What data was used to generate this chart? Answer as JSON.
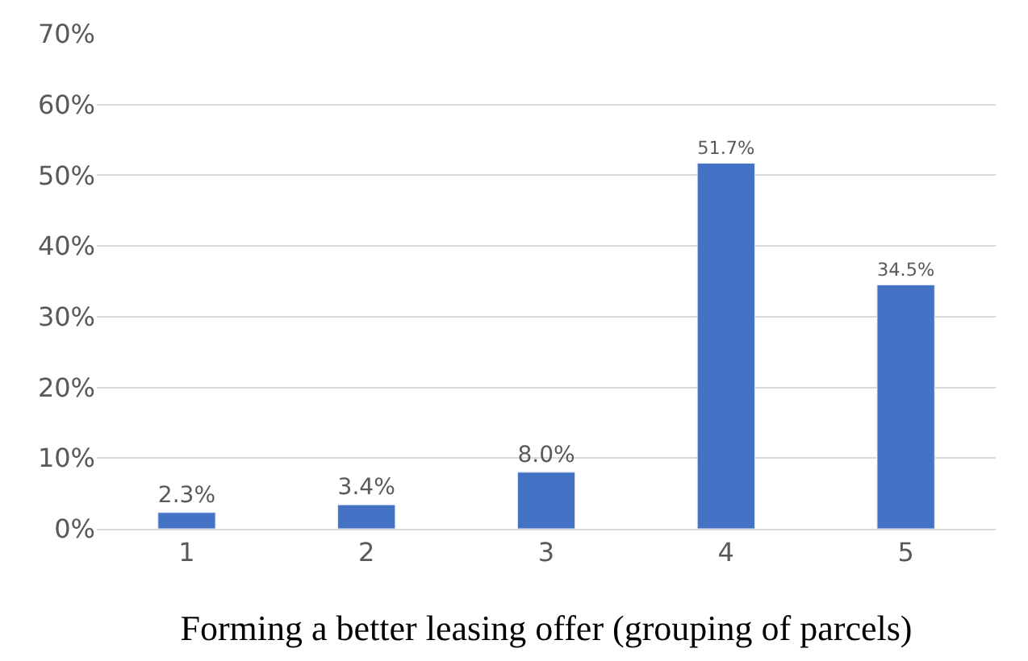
{
  "chart_data": {
    "type": "bar",
    "xlabel": "Forming a better leasing offer (grouping of parcels)",
    "categories": [
      "1",
      "2",
      "3",
      "4",
      "5"
    ],
    "values": [
      2.3,
      3.4,
      8.0,
      51.7,
      34.5
    ],
    "value_labels": [
      "2.3%",
      "3.4%",
      "8.0%",
      "51.7%",
      "34.5%"
    ],
    "color": "#4472c4",
    "ylim": [
      0,
      70
    ],
    "yticks": [
      {
        "value": 0,
        "label": "0%"
      },
      {
        "value": 10,
        "label": "10%"
      },
      {
        "value": 20,
        "label": "20%"
      },
      {
        "value": 30,
        "label": "30%"
      },
      {
        "value": 40,
        "label": "40%"
      },
      {
        "value": 50,
        "label": "50%"
      },
      {
        "value": 60,
        "label": "60%"
      },
      {
        "value": 70,
        "label": "70%"
      }
    ],
    "grid": "y",
    "legend": false
  }
}
